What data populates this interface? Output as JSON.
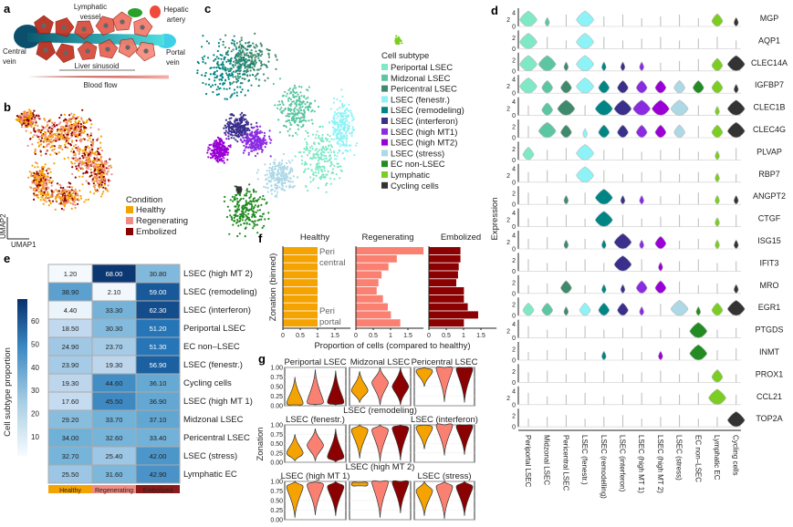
{
  "panel_letters": {
    "a": "a",
    "b": "b",
    "c": "c",
    "d": "d",
    "e": "e",
    "f": "f",
    "g": "g"
  },
  "panel_a": {
    "lymphatic_1": "Lymphatic",
    "lymphatic_2": "vessel",
    "hepatic_1": "Hepatic",
    "hepatic_2": "artery",
    "central_1": "Central",
    "central_2": "vein",
    "portal_1": "Portal",
    "portal_2": "vein",
    "sinusoid": "Liver sinusoid",
    "flow": "Blood flow"
  },
  "panel_b": {
    "legend_title": "Condition",
    "conditions": [
      {
        "label": "Healthy",
        "color": "#f5a300"
      },
      {
        "label": "Regenerating",
        "color": "#f28b82"
      },
      {
        "label": "Embolized",
        "color": "#8b0000"
      }
    ],
    "axis_x": "UMAP1",
    "axis_y": "UMAP2"
  },
  "panel_c": {
    "legend_title": "Cell subtype",
    "subtypes": [
      {
        "label": "Periportal LSEC",
        "color": "#7fe8c6"
      },
      {
        "label": "Midzonal LSEC",
        "color": "#5cc6a2"
      },
      {
        "label": "Pericentral LSEC",
        "color": "#3f8a6c"
      },
      {
        "label": "LSEC (fenestr.)",
        "color": "#8ef3f7"
      },
      {
        "label": "LSEC (remodeling)",
        "color": "#008585"
      },
      {
        "label": "LSEC (interferon)",
        "color": "#3b2f8c"
      },
      {
        "label": "LSEC (high MT1)",
        "color": "#8a2be2"
      },
      {
        "label": "LSEC (high MT2)",
        "color": "#9a00d6"
      },
      {
        "label": "LSEC (stress)",
        "color": "#add8e6"
      },
      {
        "label": "EC non-LSEC",
        "color": "#228b22"
      },
      {
        "label": "Lymphatic",
        "color": "#7ccd22"
      },
      {
        "label": "Cycling cells",
        "color": "#333333"
      }
    ]
  },
  "chart_data": [
    {
      "panel": "d",
      "type": "violin",
      "ylabel": "Expression",
      "categories": [
        "Periportal LSEC",
        "Midzonal LSEC",
        "Pericentral LSEC",
        "LSEC (fenestr.)",
        "LSEC (remodelling)",
        "LSEC (interferon)",
        "LSEC (high MT 1)",
        "LSEC (high MT 2)",
        "LSEC (stress)",
        "EC non–LSEC",
        "Lymphatic EC",
        "Cycling cells"
      ],
      "genes": [
        {
          "name": "MGP",
          "yticks": [
            "4",
            "2",
            "0"
          ],
          "levels": [
            3,
            1,
            0,
            3,
            0,
            0,
            0,
            0,
            0,
            0,
            2,
            1
          ]
        },
        {
          "name": "AQP1",
          "yticks": [
            "2",
            "0"
          ],
          "levels": [
            3,
            0,
            0,
            3,
            0,
            0,
            0,
            0,
            0,
            0,
            0,
            0
          ]
        },
        {
          "name": "CLEC14A",
          "yticks": [
            "2",
            "0"
          ],
          "levels": [
            3,
            3,
            1,
            3,
            1,
            1,
            1,
            0,
            0,
            0,
            2,
            3
          ]
        },
        {
          "name": "IGFBP7",
          "yticks": [
            "4",
            "2",
            "0"
          ],
          "levels": [
            3,
            2,
            2,
            3,
            2,
            2,
            2,
            2,
            2,
            2,
            2,
            1
          ]
        },
        {
          "name": "CLEC1B",
          "yticks": [
            "4",
            "2",
            "0"
          ],
          "levels": [
            0,
            2,
            3,
            0,
            3,
            3,
            3,
            3,
            3,
            0,
            1,
            3
          ]
        },
        {
          "name": "CLEC4G",
          "yticks": [
            "2",
            "0"
          ],
          "levels": [
            0,
            3,
            2,
            1,
            2,
            2,
            2,
            2,
            2,
            0,
            2,
            3
          ]
        },
        {
          "name": "PLVAP",
          "yticks": [
            "2",
            "0"
          ],
          "levels": [
            2,
            0,
            0,
            3,
            0,
            0,
            0,
            0,
            0,
            0,
            1,
            0
          ]
        },
        {
          "name": "RBP7",
          "yticks": [
            "4",
            "2",
            "0"
          ],
          "levels": [
            0,
            0,
            0,
            3,
            0,
            0,
            0,
            0,
            0,
            0,
            1,
            0
          ]
        },
        {
          "name": "ANGPT2",
          "yticks": [
            "2",
            "0"
          ],
          "levels": [
            0,
            0,
            1,
            0,
            3,
            1,
            1,
            0,
            0,
            0,
            1,
            1
          ]
        },
        {
          "name": "CTGF",
          "yticks": [
            "4",
            "2",
            "0"
          ],
          "levels": [
            0,
            0,
            0,
            0,
            3,
            0,
            0,
            0,
            0,
            0,
            1,
            0
          ]
        },
        {
          "name": "ISG15",
          "yticks": [
            "4",
            "2",
            "0"
          ],
          "levels": [
            0,
            0,
            1,
            0,
            1,
            3,
            1,
            2,
            0,
            0,
            1,
            1
          ]
        },
        {
          "name": "IFIT3",
          "yticks": [
            "2",
            "0"
          ],
          "levels": [
            0,
            0,
            0,
            0,
            0,
            3,
            0,
            1,
            0,
            0,
            0,
            0
          ]
        },
        {
          "name": "MRO",
          "yticks": [
            "2",
            "0"
          ],
          "levels": [
            0,
            0,
            2,
            0,
            1,
            1,
            2,
            2,
            0,
            0,
            0,
            1
          ]
        },
        {
          "name": "EGR1",
          "yticks": [
            "2",
            "0"
          ],
          "levels": [
            2,
            2,
            1,
            2,
            2,
            2,
            1,
            0,
            3,
            1,
            2,
            3
          ]
        },
        {
          "name": "PTGDS",
          "yticks": [
            "4",
            "2",
            "0"
          ],
          "levels": [
            0,
            0,
            0,
            0,
            0,
            0,
            0,
            0,
            0,
            3,
            0,
            0
          ]
        },
        {
          "name": "INMT",
          "yticks": [
            "2",
            "0"
          ],
          "levels": [
            0,
            0,
            0,
            0,
            1,
            0,
            0,
            1,
            0,
            3,
            0,
            0
          ]
        },
        {
          "name": "PROX1",
          "yticks": [
            "2",
            "0"
          ],
          "levels": [
            0,
            0,
            0,
            0,
            0,
            0,
            0,
            0,
            0,
            0,
            2,
            0
          ]
        },
        {
          "name": "CCL21",
          "yticks": [
            "4",
            "2",
            "0"
          ],
          "levels": [
            0,
            0,
            0,
            0,
            0,
            0,
            0,
            0,
            0,
            0,
            3,
            0
          ]
        },
        {
          "name": "TOP2A",
          "yticks": [
            "2",
            "0"
          ],
          "levels": [
            0,
            0,
            0,
            0,
            0,
            0,
            0,
            0,
            0,
            0,
            0,
            3
          ]
        }
      ]
    },
    {
      "panel": "e",
      "type": "heatmap",
      "colorbar_label": "Cell subtype proportion",
      "colorbar_ticks": [
        10,
        20,
        30,
        40,
        50,
        60
      ],
      "colormap": [
        "#f7fbff",
        "#08306b"
      ],
      "range": [
        0,
        70
      ],
      "columns": [
        {
          "label": "Healthy",
          "color": "#f5a300"
        },
        {
          "label": "Regenerating",
          "color": "#f28b82"
        },
        {
          "label": "Embolized",
          "color": "#8b1a1a"
        }
      ],
      "rows": [
        {
          "label": "LSEC (high MT 2)",
          "values": [
            "1.20",
            "68.00",
            "30.80"
          ]
        },
        {
          "label": "LSEC (remodeling)",
          "values": [
            "38.90",
            "2.10",
            "59.00"
          ]
        },
        {
          "label": "LSEC (interferon)",
          "values": [
            "4.40",
            "33.30",
            "62.30"
          ]
        },
        {
          "label": "Periportal LSEC",
          "values": [
            "18.50",
            "30.30",
            "51.20"
          ]
        },
        {
          "label": "EC non–LSEC",
          "values": [
            "24.90",
            "23.70",
            "51.30"
          ]
        },
        {
          "label": "LSEC (fenestr.)",
          "values": [
            "23.90",
            "19.30",
            "56.90"
          ]
        },
        {
          "label": "Cycling cells",
          "values": [
            "19.30",
            "44.60",
            "36.10"
          ]
        },
        {
          "label": "LSEC (high MT 1)",
          "values": [
            "17.60",
            "45.50",
            "36.90"
          ]
        },
        {
          "label": "Midzonal LSEC",
          "values": [
            "29.20",
            "33.70",
            "37.10"
          ]
        },
        {
          "label": "Pericentral LSEC",
          "values": [
            "34.00",
            "32.60",
            "33.40"
          ]
        },
        {
          "label": "LSEC (stress)",
          "values": [
            "32.70",
            "25.40",
            "42.00"
          ]
        },
        {
          "label": "Lymphatic EC",
          "values": [
            "25.50",
            "31.60",
            "42.90"
          ]
        }
      ]
    },
    {
      "panel": "f",
      "type": "bar",
      "xlabel": "Proportion of cells (compared to healthy)",
      "ylabel": "Zonation (binned)",
      "xticks": [
        "0",
        "0.5",
        "1",
        "1.5"
      ],
      "xlim": [
        0,
        2
      ],
      "annot_top_1": "Peri",
      "annot_top_2": "central",
      "annot_bottom_1": "Peri",
      "annot_bottom_2": "portal",
      "series": [
        {
          "name": "Healthy",
          "color": "#f5a300",
          "values": [
            1,
            1,
            1,
            1,
            1,
            1,
            1,
            1,
            1,
            1
          ]
        },
        {
          "name": "Regenerating",
          "color": "#fa8072",
          "values": [
            1.95,
            1.18,
            0.94,
            0.74,
            0.65,
            0.6,
            0.78,
            0.92,
            1.01,
            1.28
          ]
        },
        {
          "name": "Embolized",
          "color": "#8b0000",
          "values": [
            0.91,
            0.91,
            0.86,
            0.84,
            0.79,
            1.01,
            1.01,
            1.12,
            1.42,
            1.01
          ]
        }
      ]
    },
    {
      "panel": "g",
      "type": "violin",
      "ylabel": "Zonation",
      "yticks": [
        "1.00",
        "0.75",
        "0.50",
        "0.25",
        "0.00"
      ],
      "ylim": [
        0,
        1
      ],
      "colors": [
        "#f5a300",
        "#fa8072",
        "#8b0000"
      ],
      "panels": [
        {
          "title": "Periportal LSEC",
          "ranges": [
            [
              0.02,
              0.75,
              0.07
            ],
            [
              0.02,
              0.95,
              0.1
            ],
            [
              0.02,
              0.92,
              0.1
            ]
          ]
        },
        {
          "title": "Midzonal LSEC",
          "ranges": [
            [
              0.08,
              0.9,
              0.4
            ],
            [
              0.02,
              1,
              0.6
            ],
            [
              0.02,
              1,
              0.5
            ]
          ]
        },
        {
          "title": "Pericentral LSEC",
          "ranges": [
            [
              0.5,
              1,
              0.9
            ],
            [
              0.1,
              1,
              0.97
            ],
            [
              0.08,
              1,
              0.95
            ]
          ]
        },
        {
          "title": "LSEC (fenestr.)",
          "ranges": [
            [
              0.03,
              0.75,
              0.25
            ],
            [
              0.03,
              0.9,
              0.45
            ],
            [
              0.01,
              0.9,
              0.15
            ]
          ]
        },
        {
          "title": "LSEC (remodeling)",
          "ranges": [
            [
              0.1,
              1,
              0.85
            ],
            [
              0.02,
              1,
              0.85
            ],
            [
              0.05,
              1,
              0.9
            ]
          ]
        },
        {
          "title": "LSEC (interferon)",
          "ranges": [
            [
              0.35,
              1,
              0.92
            ],
            [
              0.18,
              1,
              0.98
            ],
            [
              0.2,
              1,
              0.95
            ]
          ]
        },
        {
          "title": "LSEC (high MT 1)",
          "ranges": [
            [
              0.05,
              1,
              0.85
            ],
            [
              0.12,
              1,
              0.9
            ],
            [
              0.1,
              1,
              0.85
            ]
          ]
        },
        {
          "title": "LSEC (high MT 2)",
          "ranges": [
            [
              0.88,
              0.98,
              0.93
            ],
            [
              0.05,
              1,
              0.97
            ],
            [
              0.17,
              1,
              0.97
            ]
          ]
        },
        {
          "title": "LSEC (stress)",
          "ranges": [
            [
              0.1,
              1,
              0.75
            ],
            [
              0.02,
              1,
              0.85
            ],
            [
              0.1,
              1,
              0.85
            ]
          ]
        }
      ]
    }
  ]
}
